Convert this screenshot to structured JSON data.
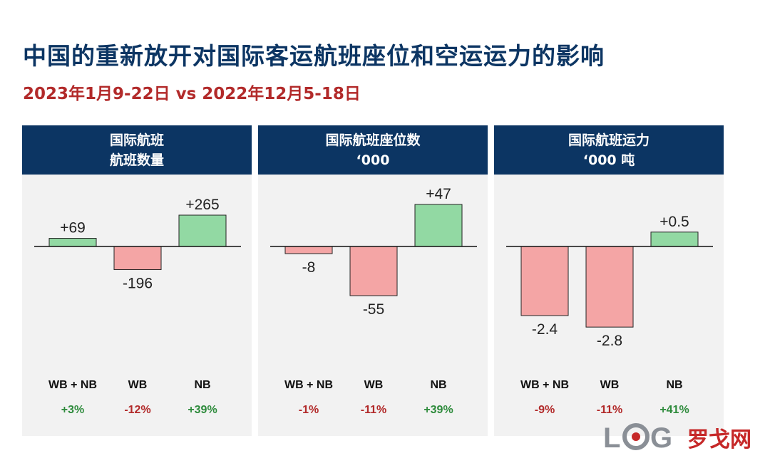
{
  "title": "中国的重新放开对国际客运航班座位和空运运力的影响",
  "subtitle": "2023年1月9-22日 vs 2022年12月5-18日",
  "colors": {
    "header_bg": "#0c3563",
    "positive_fill": "#92d9a3",
    "negative_fill": "#f4a5a5",
    "positive_text": "#2e8b3c",
    "negative_text": "#b22a2a"
  },
  "panels": [
    {
      "header_line1": "国际航班",
      "header_line2": "航班数量",
      "categories": [
        "WB + NB",
        "WB",
        "NB"
      ],
      "labels": [
        "+69",
        "-196",
        "+265"
      ],
      "percents": [
        "+3%",
        "-12%",
        "+39%"
      ]
    },
    {
      "header_line1": "国际航班座位数",
      "header_line2": "‘000",
      "categories": [
        "WB + NB",
        "WB",
        "NB"
      ],
      "labels": [
        "-8",
        "-55",
        "+47"
      ],
      "percents": [
        "-1%",
        "-11%",
        "+39%"
      ]
    },
    {
      "header_line1": "国际航班运力",
      "header_line2": "‘000 吨",
      "categories": [
        "WB + NB",
        "WB",
        "NB"
      ],
      "labels": [
        "-2.4",
        "-2.8",
        "+0.5"
      ],
      "percents": [
        "-9%",
        "-11%",
        "+41%"
      ]
    }
  ],
  "chart_data": [
    {
      "type": "bar",
      "title": "国际航班 航班数量",
      "categories": [
        "WB + NB",
        "WB",
        "NB"
      ],
      "values": [
        69,
        -196,
        265
      ],
      "percent_change": [
        "+3%",
        "-12%",
        "+39%"
      ]
    },
    {
      "type": "bar",
      "title": "国际航班座位数 ‘000",
      "categories": [
        "WB + NB",
        "WB",
        "NB"
      ],
      "values": [
        -8,
        -55,
        47
      ],
      "percent_change": [
        "-1%",
        "-11%",
        "+39%"
      ]
    },
    {
      "type": "bar",
      "title": "国际航班运力 ‘000 吨",
      "categories": [
        "WB + NB",
        "WB",
        "NB"
      ],
      "values": [
        -2.4,
        -2.8,
        0.5
      ],
      "percent_change": [
        "-9%",
        "-11%",
        "+41%"
      ]
    }
  ],
  "watermark": {
    "logo": "LOG",
    "text": "罗戈网"
  }
}
